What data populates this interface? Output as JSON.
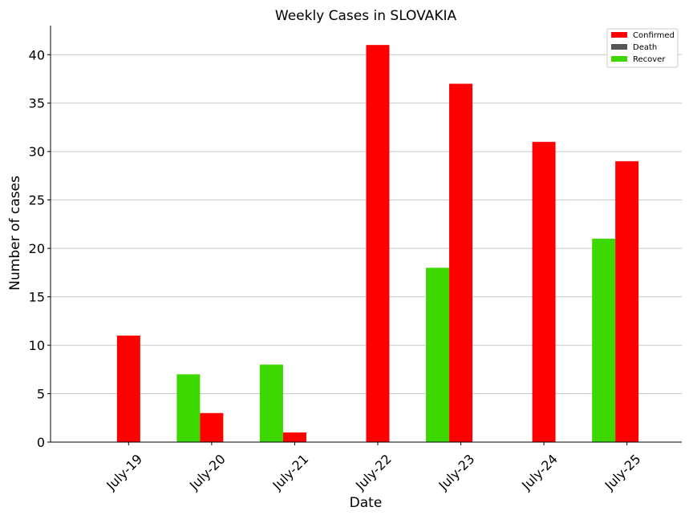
{
  "chart_data": {
    "type": "bar",
    "title": "Weekly Cases in SLOVAKIA",
    "xlabel": "Date",
    "ylabel": "Number of cases",
    "categories": [
      "July-19",
      "July-20",
      "July-21",
      "July-22",
      "July-23",
      "July-24",
      "July-25"
    ],
    "ylim": [
      0,
      43
    ],
    "yticks": [
      0,
      5,
      10,
      15,
      20,
      25,
      30,
      35,
      40
    ],
    "grid": "horizontal",
    "legend_position": "top-right",
    "series": [
      {
        "name": "Confirmed",
        "color": "#ff0000",
        "values": [
          11,
          3,
          1,
          41,
          37,
          31,
          29
        ]
      },
      {
        "name": "Death",
        "color": "#555555",
        "values": [
          0,
          0,
          0,
          0,
          0,
          0,
          0
        ]
      },
      {
        "name": "Recover",
        "color": "#3dd800",
        "values": [
          0,
          7,
          8,
          0,
          18,
          0,
          21
        ]
      }
    ]
  }
}
